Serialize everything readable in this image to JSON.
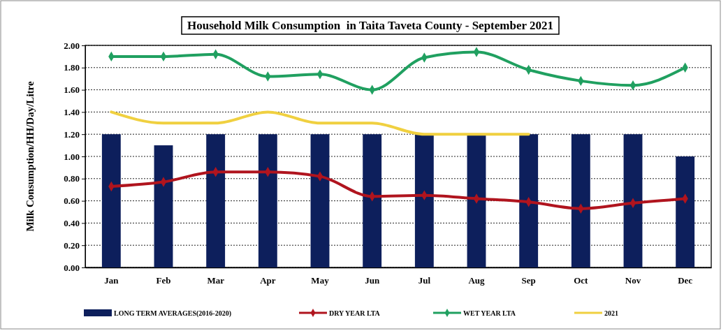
{
  "chart_data": {
    "type": "bar",
    "title": "Household Milk Consumption  in Taita Taveta County - September 2021",
    "ylabel": "Milk Consumption/HH/Day/Litre",
    "categories": [
      "Jan",
      "Feb",
      "Mar",
      "Apr",
      "May",
      "Jun",
      "Jul",
      "Aug",
      "Sep",
      "Oct",
      "Nov",
      "Dec"
    ],
    "series": [
      {
        "name": "LONG TERM AVERAGES(2016-2020)",
        "color": "#0d1f5c",
        "values": [
          1.2,
          1.1,
          1.2,
          1.2,
          1.2,
          1.2,
          1.2,
          1.2,
          1.2,
          1.2,
          1.2,
          1.0
        ]
      },
      {
        "name": "DRY YEAR LTA",
        "type": "line",
        "color": "#b0141e",
        "marker": "diamond",
        "values": [
          0.73,
          0.77,
          0.86,
          0.86,
          0.82,
          0.64,
          0.65,
          0.62,
          0.59,
          0.53,
          0.58,
          0.62
        ]
      },
      {
        "name": "WET YEAR LTA",
        "type": "line",
        "color": "#20a060",
        "marker": "diamond",
        "values": [
          1.9,
          1.9,
          1.92,
          1.72,
          1.74,
          1.6,
          1.89,
          1.94,
          1.78,
          1.68,
          1.64,
          1.8
        ]
      },
      {
        "name": "2021",
        "type": "line",
        "color": "#f0d040",
        "marker": "none",
        "values": [
          1.4,
          1.3,
          1.3,
          1.4,
          1.3,
          1.3,
          1.2,
          1.2,
          1.2,
          null,
          null,
          null
        ]
      }
    ],
    "ylim": [
      0,
      2
    ],
    "yticks": [
      {
        "value": 0,
        "label": "0.00"
      },
      {
        "value": 0.2,
        "label": "0.20"
      },
      {
        "value": 0.4,
        "label": "0.40"
      },
      {
        "value": 0.6,
        "label": "0.60"
      },
      {
        "value": 0.8,
        "label": "0.80"
      },
      {
        "value": 1,
        "label": "1.00"
      },
      {
        "value": 1.2,
        "label": "1.20"
      },
      {
        "value": 1.4,
        "label": "1.40"
      },
      {
        "value": 1.6,
        "label": "1.60"
      },
      {
        "value": 1.8,
        "label": "1.80"
      },
      {
        "value": 2,
        "label": "2.00"
      }
    ],
    "grid": "y",
    "legend": "bottom",
    "line_style": "solid"
  }
}
